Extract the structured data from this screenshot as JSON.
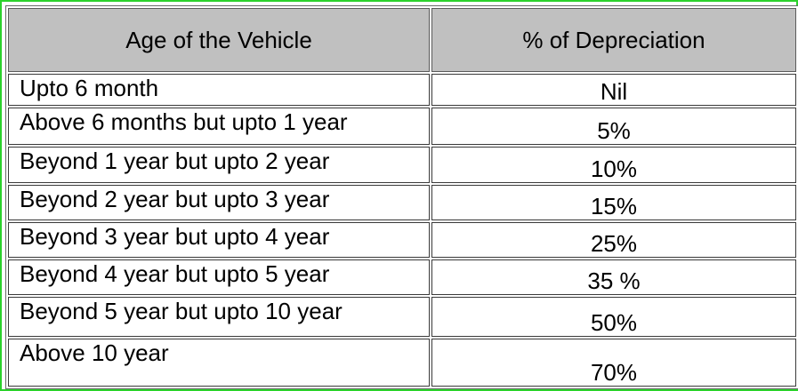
{
  "table": {
    "headers": [
      "Age of the Vehicle",
      "% of Depreciation"
    ],
    "rows": [
      {
        "age": "Upto 6 month",
        "depreciation": "Nil"
      },
      {
        "age": "Above 6 months but upto 1 year",
        "depreciation": "5%"
      },
      {
        "age": "Beyond 1 year but upto 2 year",
        "depreciation": "10%"
      },
      {
        "age": "Beyond 2 year but upto 3 year",
        "depreciation": "15%"
      },
      {
        "age": "Beyond 3 year but upto 4 year",
        "depreciation": "25%"
      },
      {
        "age": "Beyond 4 year but upto 5 year",
        "depreciation": "35 %"
      },
      {
        "age": "Beyond 5 year but upto 10 year",
        "depreciation": "50%"
      },
      {
        "age": "Above 10 year",
        "depreciation": "70%"
      }
    ]
  },
  "colors": {
    "frame_border": "#2bd12b",
    "header_background": "#c0c0c0",
    "cell_border": "#3a3a3a"
  }
}
